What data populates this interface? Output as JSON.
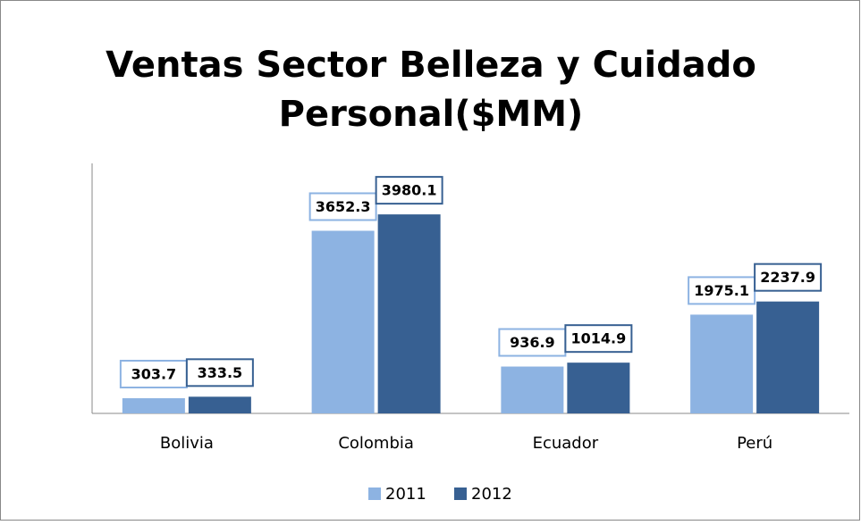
{
  "chart_data": {
    "type": "bar",
    "title": "Ventas Sector Belleza y Cuidado Personal($MM)",
    "categories": [
      "Bolivia",
      "Colombia",
      "Ecuador",
      "Perú"
    ],
    "series": [
      {
        "name": "2011",
        "color": "#8db3e2",
        "values": [
          303.7,
          3652.3,
          936.9,
          1975.1
        ]
      },
      {
        "name": "2012",
        "color": "#376092",
        "values": [
          333.5,
          3980.1,
          1014.9,
          2237.9
        ]
      }
    ],
    "ylim": [
      0,
      5000
    ]
  }
}
